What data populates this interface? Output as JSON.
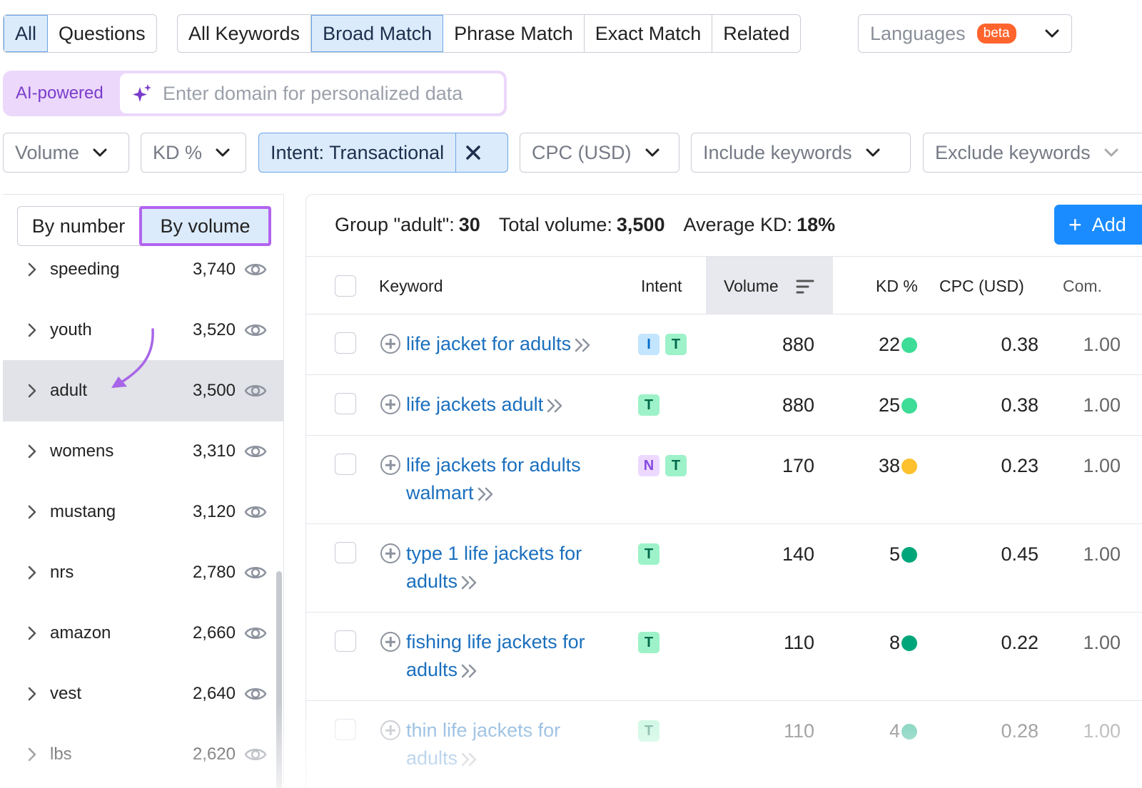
{
  "tabs": {
    "group1": [
      "All",
      "Questions"
    ],
    "group2": [
      "All Keywords",
      "Broad Match",
      "Phrase Match",
      "Exact Match",
      "Related"
    ],
    "active": [
      "All",
      "Broad Match"
    ]
  },
  "languages": {
    "label": "Languages",
    "badge": "beta"
  },
  "ai": {
    "label": "AI-powered",
    "placeholder": "Enter domain for personalized data"
  },
  "filters": {
    "volume": "Volume",
    "kd": "KD %",
    "intent": "Intent: Transactional",
    "cpc": "CPC (USD)",
    "include": "Include keywords",
    "exclude": "Exclude keywords"
  },
  "sidebar": {
    "toggle": {
      "by_number": "By number",
      "by_volume": "By volume",
      "active": "By volume"
    },
    "groups": [
      {
        "name": "speeding",
        "volume": "3,740"
      },
      {
        "name": "youth",
        "volume": "3,520"
      },
      {
        "name": "adult",
        "volume": "3,500",
        "selected": true
      },
      {
        "name": "womens",
        "volume": "3,310"
      },
      {
        "name": "mustang",
        "volume": "3,120"
      },
      {
        "name": "nrs",
        "volume": "2,780"
      },
      {
        "name": "amazon",
        "volume": "2,660"
      },
      {
        "name": "vest",
        "volume": "2,640"
      },
      {
        "name": "lbs",
        "volume": "2,620"
      }
    ]
  },
  "summary": {
    "group_label": "Group \"adult\":",
    "group_count": "30",
    "total_label": "Total volume:",
    "total_value": "3,500",
    "kd_label": "Average KD:",
    "kd_value": "18%"
  },
  "add_button": "Add",
  "table": {
    "headers": {
      "keyword": "Keyword",
      "intent": "Intent",
      "volume": "Volume",
      "kd": "KD %",
      "cpc": "CPC (USD)",
      "com": "Com."
    },
    "rows": [
      {
        "keyword_lines": [
          "life jacket for adults"
        ],
        "intents": [
          "I",
          "T"
        ],
        "volume": "880",
        "kd": "22",
        "kd_color": "#3ddc97",
        "cpc": "0.38",
        "com": "1.00"
      },
      {
        "keyword_lines": [
          "life jackets adult"
        ],
        "intents": [
          "T"
        ],
        "volume": "880",
        "kd": "25",
        "kd_color": "#3ddc97",
        "cpc": "0.38",
        "com": "1.00"
      },
      {
        "keyword_lines": [
          "life jackets for adults",
          "walmart"
        ],
        "intents": [
          "N",
          "T"
        ],
        "volume": "170",
        "kd": "38",
        "kd_color": "#fcc12d",
        "cpc": "0.23",
        "com": "1.00"
      },
      {
        "keyword_lines": [
          "type 1 life jackets for",
          "adults"
        ],
        "intents": [
          "T"
        ],
        "volume": "140",
        "kd": "5",
        "kd_color": "#00a67a",
        "cpc": "0.45",
        "com": "1.00"
      },
      {
        "keyword_lines": [
          "fishing life jackets for",
          "adults"
        ],
        "intents": [
          "T"
        ],
        "volume": "110",
        "kd": "8",
        "kd_color": "#00a67a",
        "cpc": "0.22",
        "com": "1.00"
      },
      {
        "keyword_lines": [
          "thin life jackets for",
          "adults"
        ],
        "intents": [
          "T"
        ],
        "volume": "110",
        "kd": "4",
        "kd_color": "#00a67a",
        "cpc": "0.28",
        "com": "1.00"
      }
    ]
  },
  "colors": {
    "accent": "#1a8cff",
    "link": "#1a6fbe",
    "highlight": "#b363ef",
    "annotation_arrow": "#a865e8"
  }
}
